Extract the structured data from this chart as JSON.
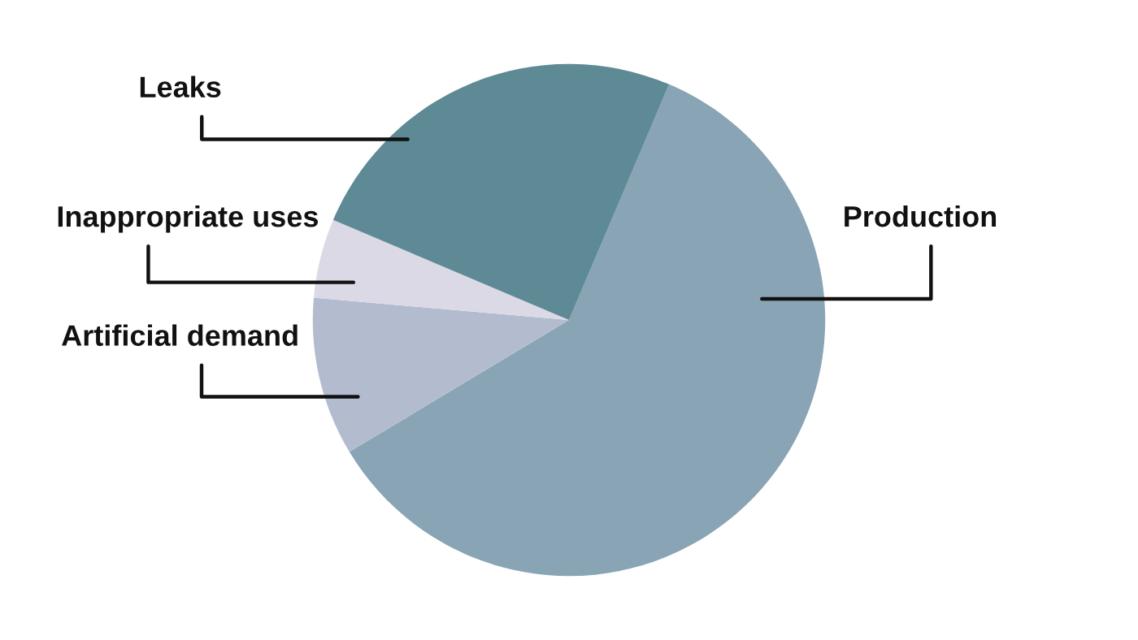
{
  "chart_data": {
    "type": "pie",
    "categories": [
      "Production",
      "Artificial demand",
      "Inappropriate uses",
      "Leaks"
    ],
    "values": [
      60,
      10,
      5,
      25
    ],
    "colors": [
      "#88a4b5",
      "#b3bbcf",
      "#dcd9e6",
      "#5e8a96"
    ],
    "legend": false
  }
}
